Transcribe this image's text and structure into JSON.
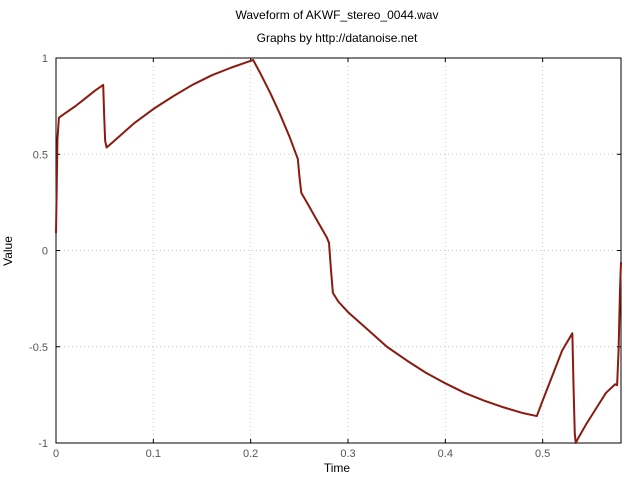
{
  "chart_data": {
    "type": "line",
    "title": "Waveform of AKWF_stereo_0044.wav",
    "subtitle": "Graphs by http://datanoise.net",
    "xlabel": "Time",
    "ylabel": "Value",
    "xlim": [
      0,
      0.5805
    ],
    "ylim": [
      -1,
      1
    ],
    "xticks": [
      0,
      0.1,
      0.2,
      0.3,
      0.4,
      0.5
    ],
    "xtick_labels": [
      "0",
      "0.1",
      "0.2",
      "0.3",
      "0.4",
      "0.5"
    ],
    "yticks": [
      -1,
      -0.5,
      0,
      0.5,
      1
    ],
    "ytick_labels": [
      "-1",
      "-0.5",
      "0",
      "0.5",
      "1"
    ],
    "grid": true,
    "series": [
      {
        "color": "#8b1a10",
        "x": [
          0,
          0.0015,
          0.003,
          0.01,
          0.02,
          0.03,
          0.04,
          0.0485,
          0.0495,
          0.0505,
          0.052,
          0.06,
          0.08,
          0.1,
          0.12,
          0.14,
          0.16,
          0.18,
          0.196,
          0.2025,
          0.21,
          0.22,
          0.23,
          0.24,
          0.2485,
          0.25,
          0.252,
          0.26,
          0.27,
          0.278,
          0.2805,
          0.2825,
          0.2845,
          0.29,
          0.3,
          0.32,
          0.34,
          0.36,
          0.38,
          0.4,
          0.42,
          0.44,
          0.46,
          0.48,
          0.494,
          0.5,
          0.51,
          0.52,
          0.5305,
          0.5318,
          0.533,
          0.534,
          0.536,
          0.545,
          0.555,
          0.565,
          0.5745,
          0.5765,
          0.578,
          0.5795,
          0.5805
        ],
        "y": [
          0.09,
          0.58,
          0.69,
          0.715,
          0.75,
          0.79,
          0.83,
          0.86,
          0.7,
          0.57,
          0.535,
          0.57,
          0.66,
          0.735,
          0.8,
          0.86,
          0.91,
          0.95,
          0.978,
          0.99,
          0.92,
          0.82,
          0.71,
          0.59,
          0.475,
          0.39,
          0.3,
          0.23,
          0.14,
          0.07,
          0.04,
          -0.1,
          -0.22,
          -0.265,
          -0.32,
          -0.41,
          -0.5,
          -0.57,
          -0.635,
          -0.69,
          -0.74,
          -0.78,
          -0.815,
          -0.845,
          -0.86,
          -0.78,
          -0.65,
          -0.52,
          -0.43,
          -0.72,
          -0.95,
          -1.0,
          -0.98,
          -0.9,
          -0.82,
          -0.74,
          -0.695,
          -0.7,
          -0.52,
          -0.2,
          -0.06
        ]
      }
    ]
  }
}
